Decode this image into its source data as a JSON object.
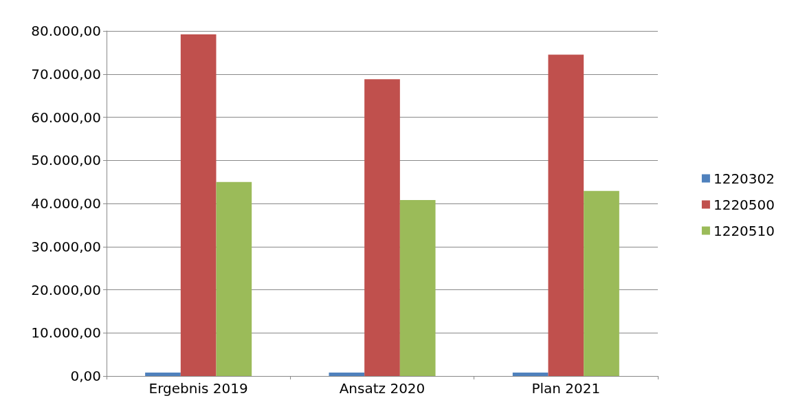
{
  "chart_data": {
    "type": "bar",
    "categories": [
      "Ergebnis 2019",
      "Ansatz 2020",
      "Plan 2021"
    ],
    "series": [
      {
        "name": "1220302",
        "color": "#4f81bd",
        "values": [
          800,
          800,
          800
        ]
      },
      {
        "name": "1220500",
        "color": "#c0504d",
        "values": [
          79200,
          68800,
          74500
        ]
      },
      {
        "name": "1220510",
        "color": "#9bbb59",
        "values": [
          45000,
          40800,
          42900
        ]
      }
    ],
    "ylim": [
      0,
      80000
    ],
    "yticks": [
      {
        "value": 0,
        "label": "0,00"
      },
      {
        "value": 10000,
        "label": "10.000,00"
      },
      {
        "value": 20000,
        "label": "20.000,00"
      },
      {
        "value": 30000,
        "label": "30.000,00"
      },
      {
        "value": 40000,
        "label": "40.000,00"
      },
      {
        "value": 50000,
        "label": "50.000,00"
      },
      {
        "value": 60000,
        "label": "60.000,00"
      },
      {
        "value": 70000,
        "label": "70.000,00"
      },
      {
        "value": 80000,
        "label": "80.000,00"
      }
    ],
    "grid": "y",
    "legend": "right"
  }
}
